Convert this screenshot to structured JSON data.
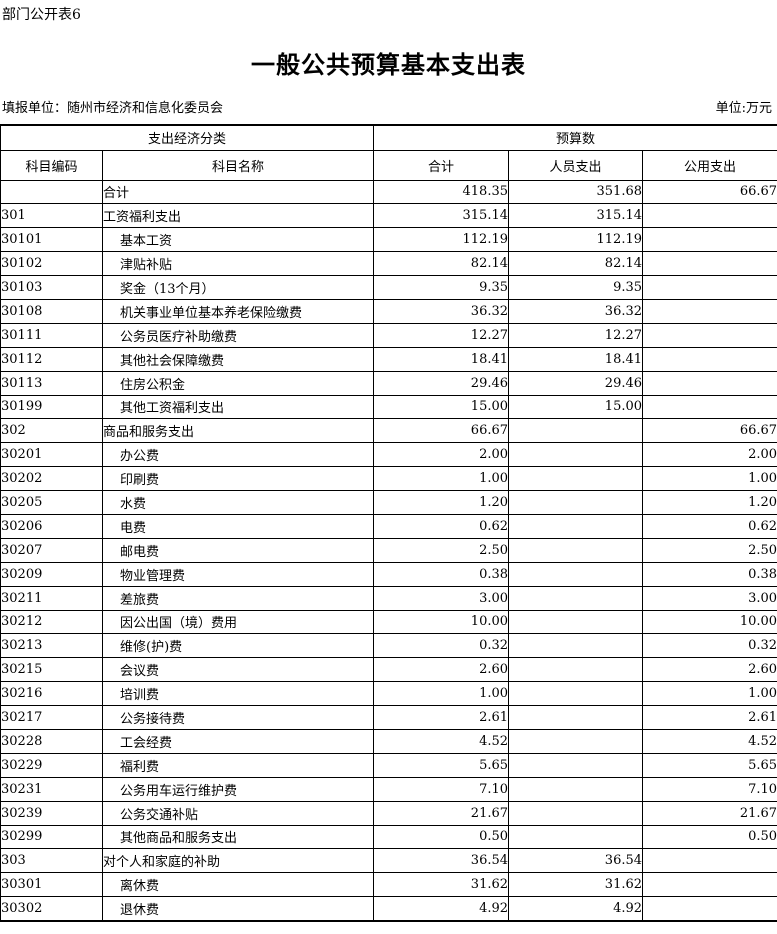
{
  "page": {
    "doc_label": "部门公开表6",
    "title": "一般公共预算基本支出表",
    "reporting_unit": "填报单位：随州市经济和信息化委员会",
    "money_unit": "单位:万元"
  },
  "table": {
    "header": {
      "group_classification": "支出经济分类",
      "group_budget": "预算数",
      "col_code": "科目编码",
      "col_name": "科目名称",
      "col_total": "合计",
      "col_personnel": "人员支出",
      "col_public": "公用支出"
    },
    "rows": [
      {
        "code": "",
        "name": "合计",
        "level": 1,
        "total": "418.35",
        "personnel": "351.68",
        "public": "66.67"
      },
      {
        "code": "301",
        "name": "工资福利支出",
        "level": 1,
        "total": "315.14",
        "personnel": "315.14",
        "public": ""
      },
      {
        "code": "30101",
        "name": "基本工资",
        "level": 2,
        "total": "112.19",
        "personnel": "112.19",
        "public": ""
      },
      {
        "code": "30102",
        "name": "津贴补贴",
        "level": 2,
        "total": "82.14",
        "personnel": "82.14",
        "public": ""
      },
      {
        "code": "30103",
        "name": "奖金（13个月）",
        "level": 2,
        "total": "9.35",
        "personnel": "9.35",
        "public": ""
      },
      {
        "code": "30108",
        "name": "机关事业单位基本养老保险缴费",
        "level": 2,
        "total": "36.32",
        "personnel": "36.32",
        "public": ""
      },
      {
        "code": "30111",
        "name": "公务员医疗补助缴费",
        "level": 2,
        "total": "12.27",
        "personnel": "12.27",
        "public": ""
      },
      {
        "code": "30112",
        "name": "其他社会保障缴费",
        "level": 2,
        "total": "18.41",
        "personnel": "18.41",
        "public": ""
      },
      {
        "code": "30113",
        "name": "住房公积金",
        "level": 2,
        "total": "29.46",
        "personnel": "29.46",
        "public": ""
      },
      {
        "code": "30199",
        "name": "其他工资福利支出",
        "level": 2,
        "total": "15.00",
        "personnel": "15.00",
        "public": ""
      },
      {
        "code": "302",
        "name": "商品和服务支出",
        "level": 1,
        "total": "66.67",
        "personnel": "",
        "public": "66.67"
      },
      {
        "code": "30201",
        "name": "办公费",
        "level": 2,
        "total": "2.00",
        "personnel": "",
        "public": "2.00"
      },
      {
        "code": "30202",
        "name": "印刷费",
        "level": 2,
        "total": "1.00",
        "personnel": "",
        "public": "1.00"
      },
      {
        "code": "30205",
        "name": "水费",
        "level": 2,
        "total": "1.20",
        "personnel": "",
        "public": "1.20"
      },
      {
        "code": "30206",
        "name": "电费",
        "level": 2,
        "total": "0.62",
        "personnel": "",
        "public": "0.62"
      },
      {
        "code": "30207",
        "name": "邮电费",
        "level": 2,
        "total": "2.50",
        "personnel": "",
        "public": "2.50"
      },
      {
        "code": "30209",
        "name": "物业管理费",
        "level": 2,
        "total": "0.38",
        "personnel": "",
        "public": "0.38"
      },
      {
        "code": "30211",
        "name": "差旅费",
        "level": 2,
        "total": "3.00",
        "personnel": "",
        "public": "3.00"
      },
      {
        "code": "30212",
        "name": "因公出国（境）费用",
        "level": 2,
        "total": "10.00",
        "personnel": "",
        "public": "10.00"
      },
      {
        "code": "30213",
        "name": "维修(护)费",
        "level": 2,
        "total": "0.32",
        "personnel": "",
        "public": "0.32"
      },
      {
        "code": "30215",
        "name": "会议费",
        "level": 2,
        "total": "2.60",
        "personnel": "",
        "public": "2.60"
      },
      {
        "code": "30216",
        "name": "培训费",
        "level": 2,
        "total": "1.00",
        "personnel": "",
        "public": "1.00"
      },
      {
        "code": "30217",
        "name": "公务接待费",
        "level": 2,
        "total": "2.61",
        "personnel": "",
        "public": "2.61"
      },
      {
        "code": "30228",
        "name": "工会经费",
        "level": 2,
        "total": "4.52",
        "personnel": "",
        "public": "4.52"
      },
      {
        "code": "30229",
        "name": "福利费",
        "level": 2,
        "total": "5.65",
        "personnel": "",
        "public": "5.65"
      },
      {
        "code": "30231",
        "name": "公务用车运行维护费",
        "level": 2,
        "total": "7.10",
        "personnel": "",
        "public": "7.10"
      },
      {
        "code": "30239",
        "name": "公务交通补贴",
        "level": 2,
        "total": "21.67",
        "personnel": "",
        "public": "21.67"
      },
      {
        "code": "30299",
        "name": "其他商品和服务支出",
        "level": 2,
        "total": "0.50",
        "personnel": "",
        "public": "0.50"
      },
      {
        "code": "303",
        "name": "对个人和家庭的补助",
        "level": 1,
        "total": "36.54",
        "personnel": "36.54",
        "public": ""
      },
      {
        "code": "30301",
        "name": "离休费",
        "level": 2,
        "total": "31.62",
        "personnel": "31.62",
        "public": ""
      },
      {
        "code": "30302",
        "name": "退休费",
        "level": 2,
        "total": "4.92",
        "personnel": "4.92",
        "public": ""
      }
    ]
  }
}
